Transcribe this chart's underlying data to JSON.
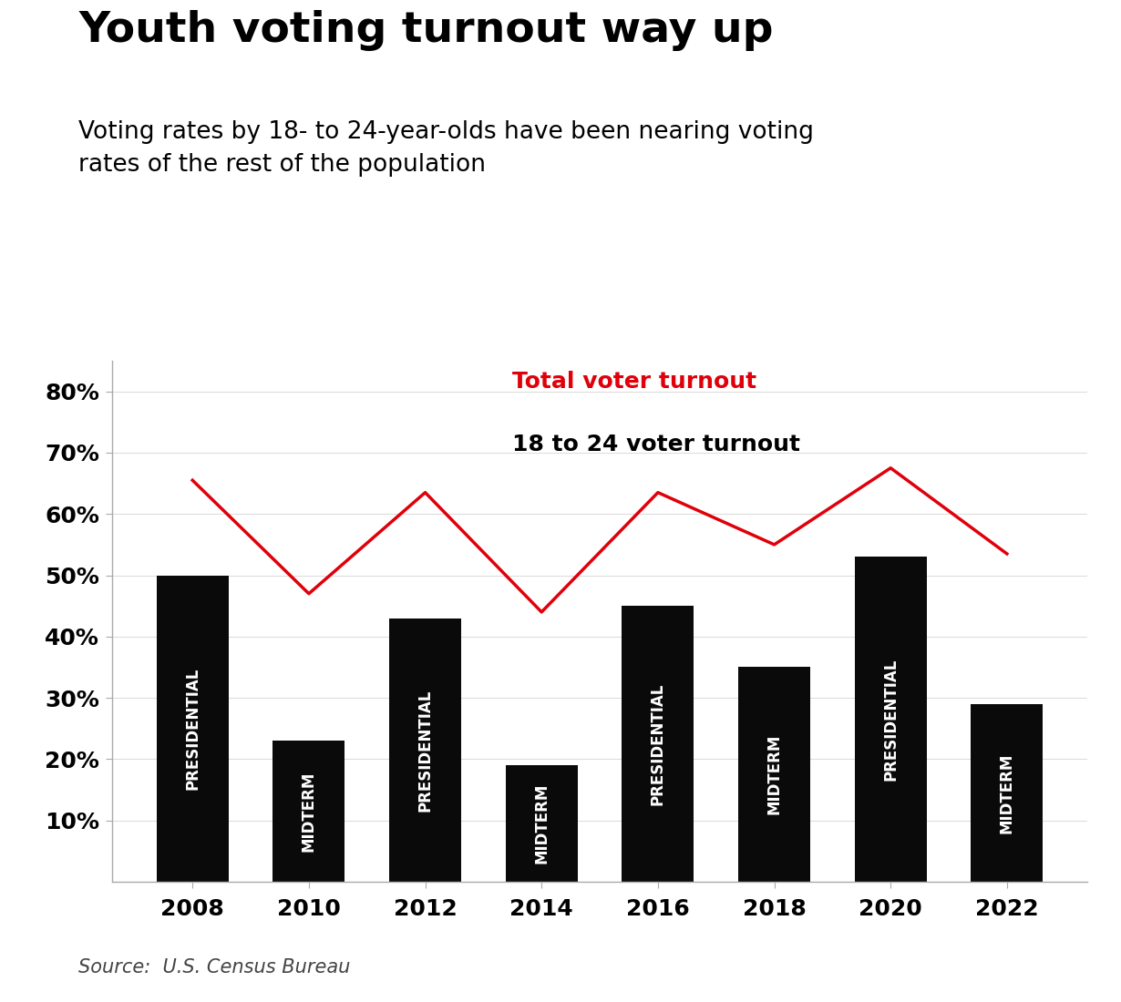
{
  "title": "Youth voting turnout way up",
  "subtitle": "Voting rates by 18- to 24-year-olds have been nearing voting\nrates of the rest of the population",
  "source": "Source:  U.S. Census Bureau",
  "years": [
    2008,
    2010,
    2012,
    2014,
    2016,
    2018,
    2020,
    2022
  ],
  "bar_labels": [
    "PRESIDENTIAL",
    "MIDTERM",
    "PRESIDENTIAL",
    "MIDTERM",
    "PRESIDENTIAL",
    "MIDTERM",
    "PRESIDENTIAL",
    "MIDTERM"
  ],
  "bar_values": [
    0.5,
    0.23,
    0.43,
    0.19,
    0.45,
    0.35,
    0.53,
    0.29
  ],
  "line_values": [
    0.655,
    0.47,
    0.635,
    0.44,
    0.635,
    0.55,
    0.675,
    0.535
  ],
  "bar_color": "#0a0a0a",
  "line_color": "#e0000a",
  "background_color": "#ffffff",
  "legend_label_line": "Total voter turnout",
  "legend_label_bar": "18 to 24 voter turnout",
  "ylim": [
    0,
    0.85
  ],
  "yticks": [
    0.1,
    0.2,
    0.3,
    0.4,
    0.5,
    0.6,
    0.7,
    0.8
  ],
  "title_fontsize": 34,
  "subtitle_fontsize": 19,
  "source_fontsize": 15,
  "axis_fontsize": 18,
  "bar_label_fontsize": 12,
  "legend_fontsize": 18
}
